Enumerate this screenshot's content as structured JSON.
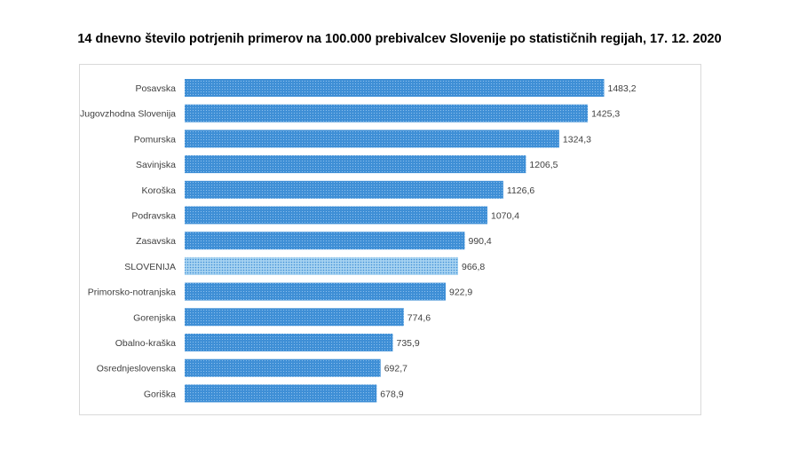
{
  "chart_data": {
    "type": "bar",
    "orientation": "horizontal",
    "title": "14 dnevno število potrjenih primerov na 100.000 prebivalcev Slovenije po statističnih regijah, 17. 12. 2020",
    "xlabel": "",
    "ylabel": "",
    "grid": false,
    "legend": "none",
    "xlim": [
      0,
      1600
    ],
    "categories": [
      "Posavska",
      "Jugovzhodna Slovenija",
      "Pomurska",
      "Savinjska",
      "Koroška",
      "Podravska",
      "Zasavska",
      "SLOVENIJA",
      "Primorsko-notranjska",
      "Gorenjska",
      "Obalno-kraška",
      "Osrednjeslovenska",
      "Goriška"
    ],
    "values": [
      1483.2,
      1425.3,
      1324.3,
      1206.5,
      1126.6,
      1070.4,
      990.4,
      966.8,
      922.9,
      774.6,
      735.9,
      692.7,
      678.9
    ],
    "value_labels": [
      "1483,2",
      "1425,3",
      "1324,3",
      "1206,5",
      "1126,6",
      "1070,4",
      "990,4",
      "966,8",
      "922,9",
      "774,6",
      "735,9",
      "692,7",
      "678,9"
    ],
    "highlight_category": "SLOVENIJA",
    "colors": {
      "bar": "#3f8fd6",
      "bar_dot": "#9ecbf2",
      "highlight": "#a7d3f1",
      "highlight_dot": "#3f8fd6"
    }
  }
}
